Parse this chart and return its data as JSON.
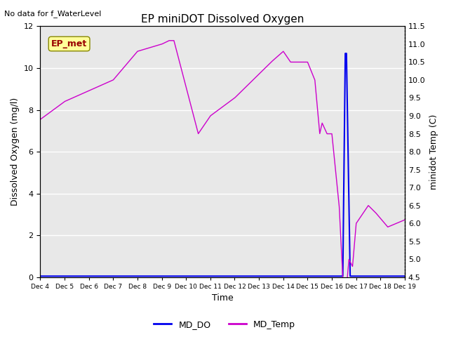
{
  "title": "EP miniDOT Dissolved Oxygen",
  "top_left_text": "No data for f_WaterLevel",
  "xlabel": "Time",
  "ylabel_left": "Dissolved Oxygen (mg/l)",
  "ylabel_right": "minidot Temp (C)",
  "legend_entries": [
    "MD_DO",
    "MD_Temp"
  ],
  "annotation_box": "EP_met",
  "annotation_box_facecolor": "#ffff99",
  "annotation_text_color": "#990000",
  "ylim_left": [
    0,
    12
  ],
  "ylim_right": [
    4.5,
    11.5
  ],
  "background_color": "#e8e8e8",
  "figure_color": "#ffffff",
  "md_do_color": "#0000ee",
  "md_temp_color": "#cc00cc",
  "md_do_linewidth": 1.5,
  "md_temp_linewidth": 1.0,
  "yticks_left": [
    0,
    2,
    4,
    6,
    8,
    10,
    12
  ],
  "yticks_right": [
    4.5,
    5.0,
    5.5,
    6.0,
    6.5,
    7.0,
    7.5,
    8.0,
    8.5,
    9.0,
    9.5,
    10.0,
    10.5,
    11.0,
    11.5
  ],
  "xtick_positions": [
    0,
    1,
    2,
    3,
    4,
    5,
    6,
    7,
    8,
    9,
    10,
    11,
    12,
    13,
    14,
    15
  ],
  "xtick_labels": [
    "Dec 4",
    "Dec 5",
    "Dec 6",
    "Dec 7",
    "Dec 8",
    "Dec 9",
    "Dec 10",
    "Dec 11",
    "Dec 12",
    "Dec 13",
    "Dec 14",
    "Dec 15",
    "Dec 16",
    "Dec 17",
    "Dec 18",
    "Dec 19"
  ],
  "figsize": [
    6.4,
    4.8
  ],
  "dpi": 100
}
